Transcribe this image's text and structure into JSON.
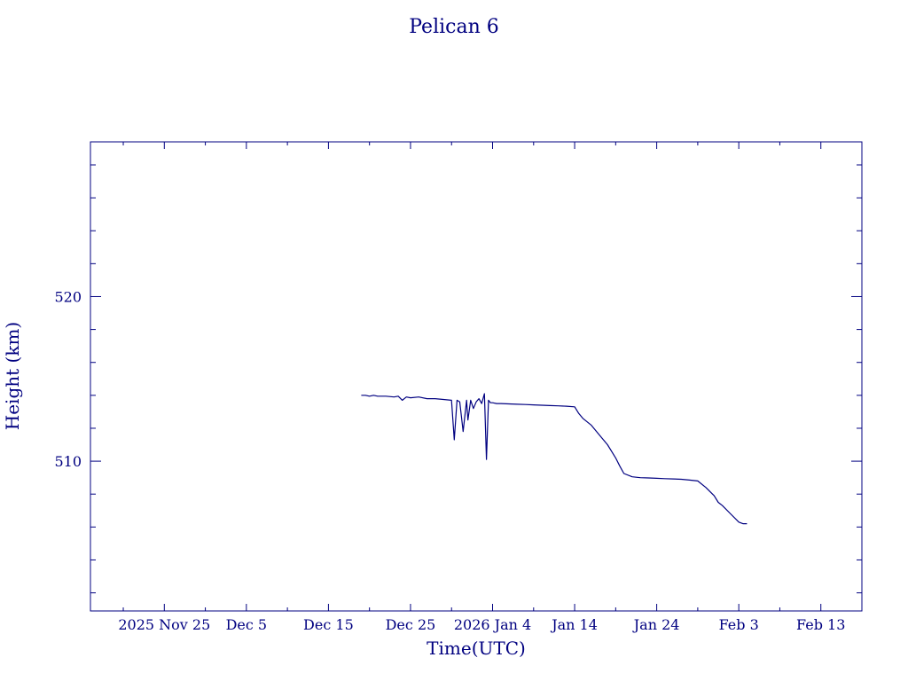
{
  "chart_data": {
    "type": "line",
    "title": "Pelican 6",
    "xlabel": "Time(UTC)",
    "ylabel": "Height (km)",
    "xlim": [
      "2025-11-16",
      "2026-02-18"
    ],
    "ylim": [
      500.9,
      529.4
    ],
    "x_ticks": [
      {
        "date": "2025-11-25",
        "label": "2025 Nov 25"
      },
      {
        "date": "2025-12-05",
        "label": "Dec  5"
      },
      {
        "date": "2025-12-15",
        "label": "Dec 15"
      },
      {
        "date": "2025-12-25",
        "label": "Dec 25"
      },
      {
        "date": "2026-01-04",
        "label": "2026 Jan  4"
      },
      {
        "date": "2026-01-14",
        "label": "Jan 14"
      },
      {
        "date": "2026-01-24",
        "label": "Jan 24"
      },
      {
        "date": "2026-02-03",
        "label": "Feb  3"
      },
      {
        "date": "2026-02-13",
        "label": "Feb 13"
      }
    ],
    "y_ticks": [
      510,
      520
    ],
    "y_minor_step": 2,
    "x_minor_step_days": 5,
    "grid": false,
    "colors": {
      "line": "#000080",
      "axes": "#000080",
      "text": "#000080"
    },
    "series": [
      {
        "x": [
          "2025-12-19T00:00",
          "2025-12-19T12:00",
          "2025-12-20T00:00",
          "2025-12-20T12:00",
          "2025-12-21T00:00",
          "2025-12-22T00:00",
          "2025-12-23T00:00",
          "2025-12-23T12:00",
          "2025-12-24T00:00",
          "2025-12-24T12:00",
          "2025-12-25T00:00",
          "2025-12-26T00:00",
          "2025-12-27T00:00",
          "2025-12-28T00:00",
          "2025-12-29T00:00",
          "2025-12-30T00:00",
          "2025-12-30T08:00",
          "2025-12-30T16:00",
          "2025-12-31T00:00",
          "2025-12-31T10:00",
          "2025-12-31T20:00",
          "2026-01-01T00:00",
          "2026-01-01T08:00",
          "2026-01-01T16:00",
          "2026-01-02T00:00",
          "2026-01-02T08:00",
          "2026-01-02T16:00",
          "2026-01-03T00:00",
          "2026-01-03T06:00",
          "2026-01-03T12:00",
          "2026-01-03T18:00",
          "2026-01-04T00:00",
          "2026-01-04T12:00",
          "2026-01-05T00:00",
          "2026-01-06T00:00",
          "2026-01-07T00:00",
          "2026-01-08T00:00",
          "2026-01-09T00:00",
          "2026-01-10T00:00",
          "2026-01-11T00:00",
          "2026-01-12T00:00",
          "2026-01-13T00:00",
          "2026-01-14T00:00",
          "2026-01-14T12:00",
          "2026-01-15T00:00",
          "2026-01-16T00:00",
          "2026-01-17T00:00",
          "2026-01-18T00:00",
          "2026-01-19T00:00",
          "2026-01-19T12:00",
          "2026-01-20T00:00",
          "2026-01-21T00:00",
          "2026-01-22T00:00",
          "2026-01-23T00:00",
          "2026-01-24T00:00",
          "2026-01-25T00:00",
          "2026-01-26T00:00",
          "2026-01-27T00:00",
          "2026-01-28T00:00",
          "2026-01-29T00:00",
          "2026-01-30T00:00",
          "2026-01-31T00:00",
          "2026-01-31T12:00",
          "2026-02-01T00:00",
          "2026-02-02T00:00",
          "2026-02-03T00:00",
          "2026-02-03T12:00",
          "2026-02-04T00:00"
        ],
        "values": [
          514.0,
          514.0,
          513.95,
          514.0,
          513.95,
          513.95,
          513.9,
          513.95,
          513.7,
          513.9,
          513.85,
          513.9,
          513.8,
          513.8,
          513.75,
          513.7,
          511.3,
          513.7,
          513.6,
          511.8,
          513.7,
          512.5,
          513.7,
          513.2,
          513.6,
          513.8,
          513.5,
          514.1,
          510.1,
          513.7,
          513.55,
          513.55,
          513.5,
          513.5,
          513.48,
          513.46,
          513.44,
          513.42,
          513.4,
          513.38,
          513.36,
          513.34,
          513.3,
          512.9,
          512.6,
          512.2,
          511.6,
          511.0,
          510.2,
          509.7,
          509.25,
          509.05,
          509.0,
          508.98,
          508.96,
          508.94,
          508.92,
          508.9,
          508.85,
          508.8,
          508.4,
          507.9,
          507.5,
          507.3,
          506.8,
          506.3,
          506.2,
          506.2
        ]
      }
    ]
  }
}
